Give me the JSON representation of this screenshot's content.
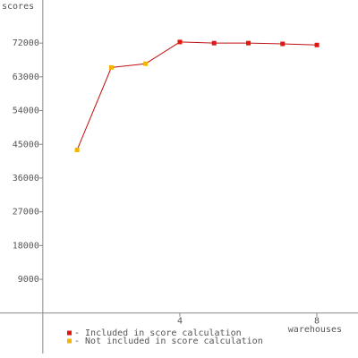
{
  "chart_data": {
    "type": "line",
    "y_label": "scores",
    "x_label": "warehouses",
    "series": [
      {
        "name": "- Included in score calculation",
        "color": "#e0160f",
        "x": [
          4,
          5,
          6,
          7,
          8
        ],
        "values": [
          72300,
          72000,
          72000,
          71800,
          71500
        ]
      },
      {
        "name": "- Not included in score calculation",
        "color": "#f4b400",
        "x": [
          1,
          2,
          3
        ],
        "values": [
          43500,
          65500,
          66500
        ]
      }
    ],
    "line_color": "#c01010",
    "xlim": [
      -1.25,
      9.2
    ],
    "xticks": [
      4,
      8
    ],
    "ylim": [
      -12000,
      83500
    ],
    "yticks": [
      9000,
      18000,
      27000,
      36000,
      45000,
      54000,
      63000,
      72000
    ]
  }
}
